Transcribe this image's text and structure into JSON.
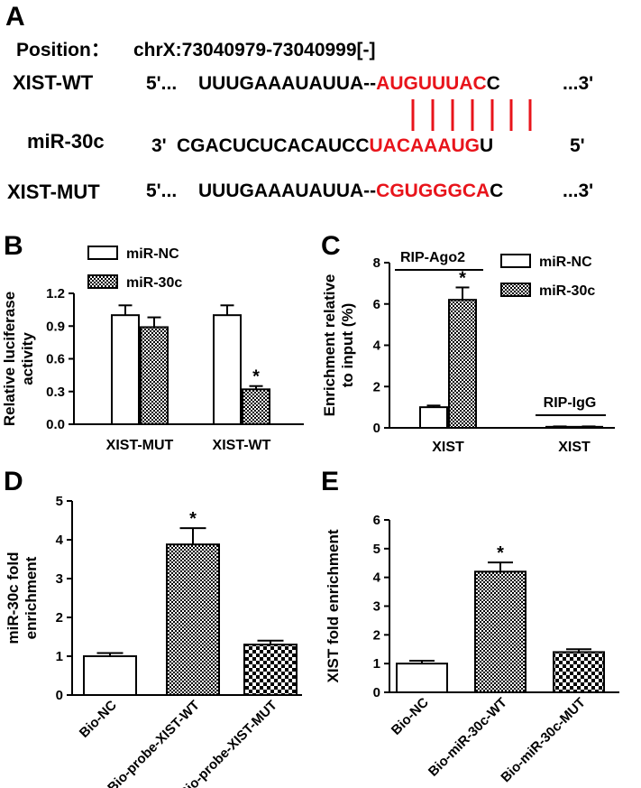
{
  "panel_a": {
    "letter": "A",
    "position_label": "Position：",
    "position_value": "chrX:73040979-73040999[-]",
    "wt": {
      "name": "XIST-WT",
      "prefix": "5'...",
      "seq": "UUUGAAAUAUUA--",
      "site": "AUGUUUAC",
      "tail": "C",
      "suffix": "...3'"
    },
    "mir": {
      "name": "miR-30c",
      "prefix": "3'",
      "seq": "CGACUCUCACAUCC",
      "site": "UACAAAUG",
      "tail": "U",
      "suffix": "5'"
    },
    "mut": {
      "name": "XIST-MUT",
      "prefix": "5'...",
      "seq": "UUUGAAAUAUUA--",
      "site": "CGUGGGCA",
      "tail": "C",
      "suffix": "...3'"
    },
    "highlight_color": "#e8141b"
  },
  "chart_data": [
    {
      "panel": "B",
      "type": "bar",
      "ylabel": "Relative luciferase activity",
      "categories": [
        "XIST-MUT",
        "XIST-WT"
      ],
      "series": [
        {
          "name": "miR-NC",
          "values": [
            1.0,
            1.0
          ],
          "errors": [
            0.09,
            0.09
          ],
          "pattern": "white"
        },
        {
          "name": "miR-30c",
          "values": [
            0.89,
            0.32
          ],
          "errors": [
            0.09,
            0.03
          ],
          "pattern": "dots"
        }
      ],
      "ylim": [
        0,
        1.2
      ],
      "yticks": [
        "0.0",
        "0.3",
        "0.6",
        "0.9",
        "1.2"
      ],
      "significance": [
        {
          "category": 1,
          "series": 1,
          "label": "*"
        }
      ],
      "legend_position": "top"
    },
    {
      "panel": "C",
      "type": "bar",
      "ylabel": "Enrichment relative to input (%)",
      "categories": [
        "XIST",
        "XIST"
      ],
      "group_labels": [
        "RIP-Ago2",
        "RIP-IgG"
      ],
      "series": [
        {
          "name": "miR-NC",
          "values": [
            1.0,
            0.05
          ],
          "errors": [
            0.08,
            0.02
          ],
          "pattern": "white"
        },
        {
          "name": "miR-30c",
          "values": [
            6.2,
            0.05
          ],
          "errors": [
            0.6,
            0.02
          ],
          "pattern": "dots"
        }
      ],
      "ylim": [
        0,
        8
      ],
      "yticks": [
        "0",
        "2",
        "4",
        "6",
        "8"
      ],
      "significance": [
        {
          "category": 0,
          "series": 1,
          "label": "*"
        }
      ],
      "legend_position": "top-right"
    },
    {
      "panel": "D",
      "type": "bar",
      "ylabel": "miR-30c fold enrichment",
      "categories": [
        "Bio-NC",
        "Bio-probe-XIST-WT",
        "Bio-probe-XIST-MUT"
      ],
      "values": [
        1.0,
        3.88,
        1.3
      ],
      "errors": [
        0.08,
        0.42,
        0.1
      ],
      "patterns": [
        "white",
        "dots",
        "checker"
      ],
      "ylim": [
        0,
        5
      ],
      "yticks": [
        "0",
        "1",
        "2",
        "3",
        "4",
        "5"
      ],
      "significance": [
        {
          "category": 1,
          "label": "*"
        }
      ]
    },
    {
      "panel": "E",
      "type": "bar",
      "ylabel": "XIST fold enrichment",
      "categories": [
        "Bio-NC",
        "Bio-miR-30c-WT",
        "Bio-miR-30c-MUT"
      ],
      "values": [
        1.0,
        4.2,
        1.4
      ],
      "errors": [
        0.1,
        0.32,
        0.1
      ],
      "patterns": [
        "white",
        "dots",
        "checker"
      ],
      "ylim": [
        0,
        6
      ],
      "yticks": [
        "0",
        "1",
        "2",
        "3",
        "4",
        "5",
        "6"
      ],
      "significance": [
        {
          "category": 1,
          "label": "*"
        }
      ]
    }
  ]
}
